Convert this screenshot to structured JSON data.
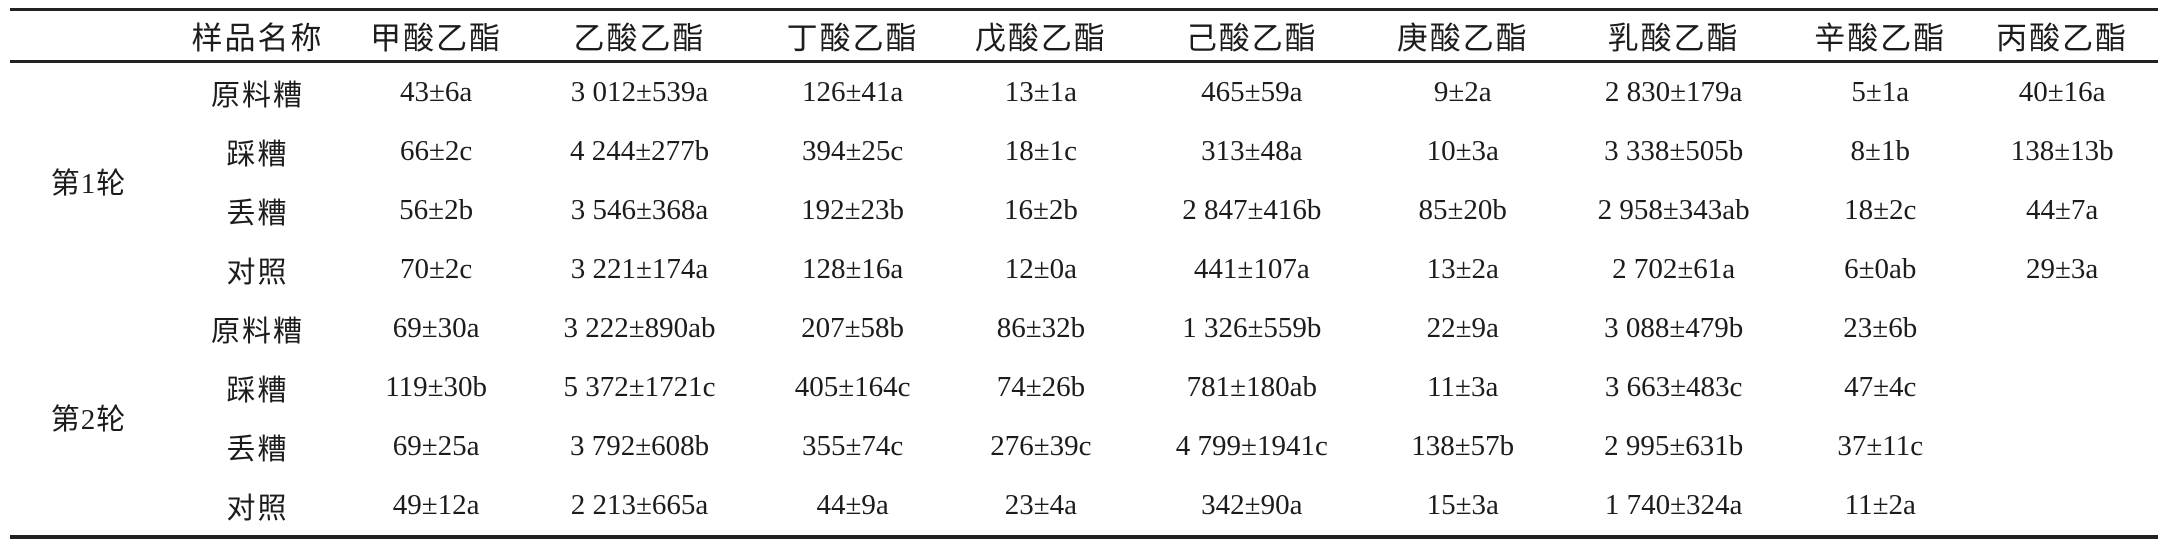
{
  "table": {
    "columns": [
      "",
      "样品名称",
      "甲酸乙酯",
      "乙酸乙酯",
      "丁酸乙酯",
      "戊酸乙酯",
      "己酸乙酯",
      "庚酸乙酯",
      "乳酸乙酯",
      "辛酸乙酯",
      "丙酸乙酯"
    ],
    "col_widths_pct": [
      7.3,
      8.4,
      8.2,
      10.7,
      9.1,
      8.4,
      11.2,
      8.4,
      11.2,
      8.0,
      8.9
    ],
    "groups": [
      {
        "round": "第1轮",
        "rows": [
          {
            "sample": "原料糟",
            "values": [
              "43±6a",
              "3 012±539a",
              "126±41a",
              "13±1a",
              "465±59a",
              "9±2a",
              "2 830±179a",
              "5±1a",
              "40±16a"
            ]
          },
          {
            "sample": "踩糟",
            "values": [
              "66±2c",
              "4 244±277b",
              "394±25c",
              "18±1c",
              "313±48a",
              "10±3a",
              "3 338±505b",
              "8±1b",
              "138±13b"
            ]
          },
          {
            "sample": "丢糟",
            "values": [
              "56±2b",
              "3 546±368a",
              "192±23b",
              "16±2b",
              "2 847±416b",
              "85±20b",
              "2 958±343ab",
              "18±2c",
              "44±7a"
            ]
          },
          {
            "sample": "对照",
            "values": [
              "70±2c",
              "3 221±174a",
              "128±16a",
              "12±0a",
              "441±107a",
              "13±2a",
              "2 702±61a",
              "6±0ab",
              "29±3a"
            ]
          }
        ]
      },
      {
        "round": "第2轮",
        "rows": [
          {
            "sample": "原料糟",
            "values": [
              "69±30a",
              "3 222±890ab",
              "207±58b",
              "86±32b",
              "1 326±559b",
              "22±9a",
              "3 088±479b",
              "23±6b",
              ""
            ]
          },
          {
            "sample": "踩糟",
            "values": [
              "119±30b",
              "5 372±1721c",
              "405±164c",
              "74±26b",
              "781±180ab",
              "11±3a",
              "3 663±483c",
              "47±4c",
              ""
            ]
          },
          {
            "sample": "丢糟",
            "values": [
              "69±25a",
              "3 792±608b",
              "355±74c",
              "276±39c",
              "4 799±1941c",
              "138±57b",
              "2 995±631b",
              "37±11c",
              ""
            ]
          },
          {
            "sample": "对照",
            "values": [
              "49±12a",
              "2 213±665a",
              "44±9a",
              "23±4a",
              "342±90a",
              "15±3a",
              "1 740±324a",
              "11±2a",
              ""
            ]
          }
        ]
      }
    ]
  }
}
